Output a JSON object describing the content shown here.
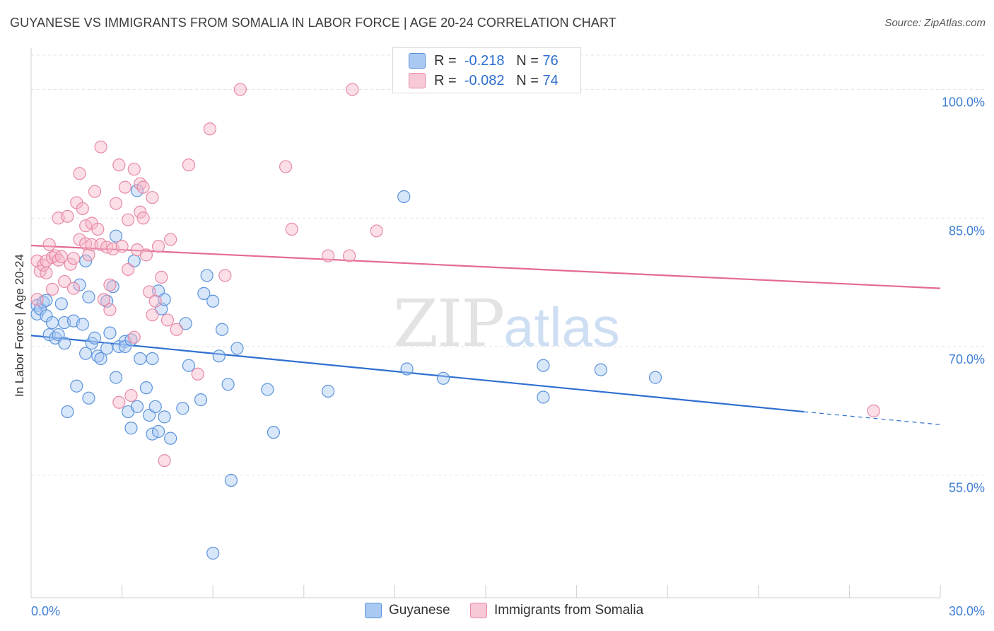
{
  "header": {
    "title": "GUYANESE VS IMMIGRANTS FROM SOMALIA IN LABOR FORCE | AGE 20-24 CORRELATION CHART",
    "source": "Source: ZipAtlas.com"
  },
  "watermark": {
    "zip": "ZIP",
    "atlas": "atlas"
  },
  "legend_stats": [
    {
      "r_label": "R =",
      "r_value": "-0.218",
      "n_label": "N =",
      "n_value": "76",
      "color": "#a9c8f2"
    },
    {
      "r_label": "R =",
      "r_value": "-0.082",
      "n_label": "N =",
      "n_value": "74",
      "color": "#f7b5c8"
    }
  ],
  "bottom_legend": [
    {
      "label": "Guyanese",
      "color": "#a9c8f2"
    },
    {
      "label": "Immigrants from Somalia",
      "color": "#f7b5c8"
    }
  ],
  "chart_data": {
    "type": "scatter",
    "xlabel": "",
    "ylabel": "In Labor Force | Age 20-24",
    "xlim": [
      0,
      30
    ],
    "ylim": [
      40.7,
      104.5
    ],
    "x_tick_labels": [
      "0.0%",
      "30.0%"
    ],
    "y_ticks": [
      55,
      70,
      85,
      100
    ],
    "y_tick_labels": [
      "55.0%",
      "70.0%",
      "85.0%",
      "100.0%"
    ],
    "grid": "horizontal dashed",
    "legend_position": "top-center",
    "series": [
      {
        "name": "Guyanese",
        "color": "#a9c8f2",
        "stroke": "#5b93dc",
        "line_color": "#2f6fd0",
        "trend": {
          "x0": 0,
          "y0": 71.3,
          "x1": 25.5,
          "y1": 62.4,
          "x_dash_end": 30,
          "y_dash_end": 60.9
        },
        "points": [
          [
            0.2,
            74.8
          ],
          [
            0.2,
            73.8
          ],
          [
            0.3,
            74.4
          ],
          [
            0.4,
            75.2
          ],
          [
            0.5,
            73.6
          ],
          [
            0.5,
            75.4
          ],
          [
            0.6,
            71.4
          ],
          [
            0.7,
            72.8
          ],
          [
            0.8,
            71.0
          ],
          [
            0.9,
            71.4
          ],
          [
            1.0,
            75.0
          ],
          [
            1.1,
            70.4
          ],
          [
            1.1,
            72.8
          ],
          [
            1.2,
            62.4
          ],
          [
            1.4,
            73.0
          ],
          [
            1.5,
            65.4
          ],
          [
            1.6,
            77.2
          ],
          [
            1.7,
            72.6
          ],
          [
            1.8,
            69.2
          ],
          [
            1.8,
            80.0
          ],
          [
            1.9,
            75.8
          ],
          [
            1.9,
            64.0
          ],
          [
            2.0,
            70.4
          ],
          [
            2.1,
            71.0
          ],
          [
            2.2,
            68.9
          ],
          [
            2.3,
            68.6
          ],
          [
            2.5,
            75.3
          ],
          [
            2.6,
            71.6
          ],
          [
            2.7,
            77.0
          ],
          [
            2.5,
            69.8
          ],
          [
            2.8,
            82.9
          ],
          [
            2.8,
            66.4
          ],
          [
            2.9,
            70.0
          ],
          [
            3.1,
            70.6
          ],
          [
            3.1,
            70.0
          ],
          [
            3.2,
            62.4
          ],
          [
            3.3,
            70.8
          ],
          [
            3.3,
            60.5
          ],
          [
            3.4,
            80.0
          ],
          [
            3.5,
            63.0
          ],
          [
            3.5,
            88.2
          ],
          [
            3.6,
            68.6
          ],
          [
            3.8,
            65.2
          ],
          [
            3.9,
            62.0
          ],
          [
            4.0,
            59.8
          ],
          [
            4.0,
            68.6
          ],
          [
            4.1,
            63.0
          ],
          [
            4.2,
            76.5
          ],
          [
            4.2,
            60.1
          ],
          [
            4.3,
            74.4
          ],
          [
            4.4,
            75.5
          ],
          [
            4.4,
            61.8
          ],
          [
            4.6,
            59.3
          ],
          [
            5.0,
            62.8
          ],
          [
            5.1,
            72.7
          ],
          [
            5.2,
            67.8
          ],
          [
            5.6,
            63.8
          ],
          [
            5.7,
            76.2
          ],
          [
            5.8,
            78.3
          ],
          [
            6.0,
            75.3
          ],
          [
            6.2,
            68.9
          ],
          [
            6.3,
            72.0
          ],
          [
            6.5,
            65.6
          ],
          [
            6.6,
            54.4
          ],
          [
            6.8,
            69.8
          ],
          [
            7.8,
            65.0
          ],
          [
            8.0,
            60.0
          ],
          [
            9.8,
            64.8
          ],
          [
            12.3,
            87.5
          ],
          [
            12.4,
            67.4
          ],
          [
            13.6,
            66.3
          ],
          [
            16.9,
            67.8
          ],
          [
            16.9,
            64.1
          ],
          [
            18.8,
            67.3
          ],
          [
            20.6,
            66.4
          ],
          [
            6.0,
            45.9
          ]
        ]
      },
      {
        "name": "Immigrants from Somalia",
        "color": "#f7b5c8",
        "stroke": "#e68aa6",
        "line_color": "#e46a92",
        "trend": {
          "x0": 0,
          "y0": 81.8,
          "x1": 30,
          "y1": 76.8
        },
        "points": [
          [
            0.2,
            80.0
          ],
          [
            0.2,
            75.5
          ],
          [
            0.3,
            78.8
          ],
          [
            0.4,
            79.5
          ],
          [
            0.5,
            80.0
          ],
          [
            0.5,
            78.6
          ],
          [
            0.6,
            81.9
          ],
          [
            0.7,
            80.4
          ],
          [
            0.7,
            76.7
          ],
          [
            0.8,
            80.6
          ],
          [
            0.9,
            85.0
          ],
          [
            0.9,
            80.1
          ],
          [
            1.0,
            80.5
          ],
          [
            1.1,
            77.6
          ],
          [
            1.2,
            85.2
          ],
          [
            1.3,
            79.6
          ],
          [
            1.4,
            76.8
          ],
          [
            1.4,
            80.3
          ],
          [
            1.5,
            86.8
          ],
          [
            1.6,
            82.5
          ],
          [
            1.6,
            90.2
          ],
          [
            1.7,
            86.1
          ],
          [
            1.8,
            84.1
          ],
          [
            1.8,
            82.0
          ],
          [
            1.9,
            80.7
          ],
          [
            2.0,
            84.4
          ],
          [
            2.0,
            81.9
          ],
          [
            2.1,
            88.1
          ],
          [
            2.2,
            83.7
          ],
          [
            2.3,
            81.9
          ],
          [
            2.3,
            93.3
          ],
          [
            2.4,
            75.5
          ],
          [
            2.5,
            81.6
          ],
          [
            2.6,
            77.2
          ],
          [
            2.6,
            74.3
          ],
          [
            2.7,
            81.4
          ],
          [
            2.8,
            86.7
          ],
          [
            2.9,
            63.5
          ],
          [
            2.9,
            91.2
          ],
          [
            3.0,
            81.7
          ],
          [
            3.1,
            88.6
          ],
          [
            3.2,
            84.8
          ],
          [
            3.2,
            79.0
          ],
          [
            3.3,
            64.3
          ],
          [
            3.4,
            71.1
          ],
          [
            3.4,
            90.7
          ],
          [
            3.5,
            81.3
          ],
          [
            3.6,
            89.0
          ],
          [
            3.6,
            85.7
          ],
          [
            3.7,
            85.0
          ],
          [
            3.7,
            88.6
          ],
          [
            3.8,
            80.7
          ],
          [
            3.9,
            76.4
          ],
          [
            4.0,
            87.4
          ],
          [
            4.0,
            73.7
          ],
          [
            4.1,
            75.3
          ],
          [
            4.2,
            81.7
          ],
          [
            4.3,
            78.1
          ],
          [
            4.4,
            56.7
          ],
          [
            4.5,
            73.1
          ],
          [
            4.6,
            82.5
          ],
          [
            4.8,
            72.0
          ],
          [
            5.2,
            91.2
          ],
          [
            5.5,
            66.8
          ],
          [
            5.9,
            95.4
          ],
          [
            6.4,
            78.3
          ],
          [
            6.9,
            100.0
          ],
          [
            8.4,
            91.0
          ],
          [
            8.6,
            83.7
          ],
          [
            9.8,
            80.6
          ],
          [
            10.5,
            80.6
          ],
          [
            10.6,
            100.0
          ],
          [
            11.4,
            83.5
          ],
          [
            27.8,
            62.5
          ]
        ]
      }
    ]
  }
}
